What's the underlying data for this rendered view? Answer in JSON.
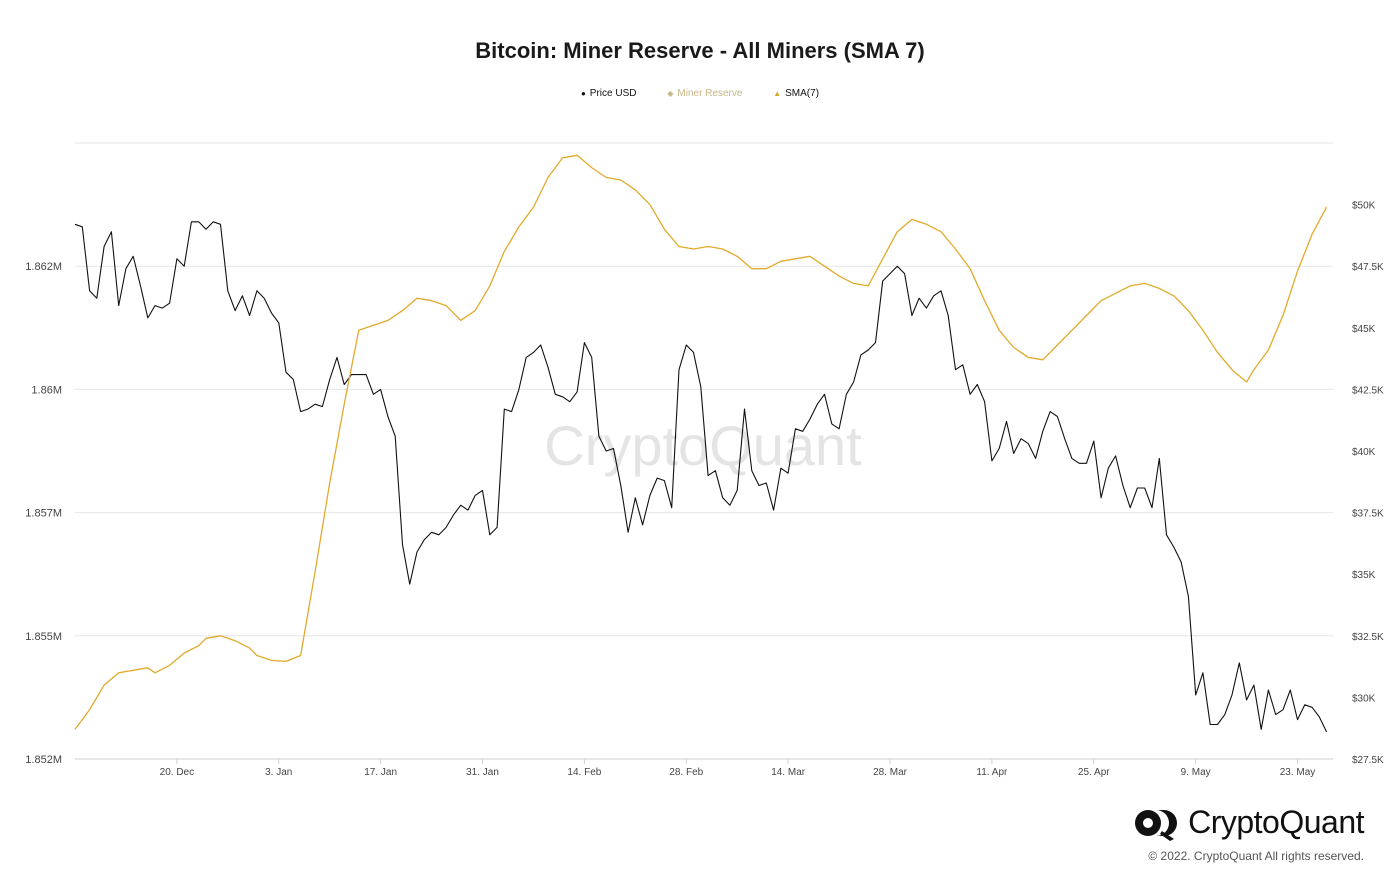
{
  "chart_data": {
    "type": "line",
    "title": "Bitcoin: Miner Reserve - All Miners (SMA 7)",
    "legend": [
      {
        "name": "Price USD",
        "color": "#111111",
        "marker": "●"
      },
      {
        "name": "Miner Reserve",
        "color": "#c9b68a",
        "marker": "◆"
      },
      {
        "name": "SMA(7)",
        "color": "#d8a32a",
        "marker": "▲"
      }
    ],
    "x_ticks": [
      "20. Dec",
      "3. Jan",
      "17. Jan",
      "31. Jan",
      "14. Feb",
      "28. Feb",
      "14. Mar",
      "28. Mar",
      "11. Apr",
      "25. Apr",
      "9. May",
      "23. May"
    ],
    "y_left_ticks": [
      "1.852M",
      "1.855M",
      "1.857M",
      "1.86M",
      "1.862M"
    ],
    "y_right_ticks": [
      "$27.5K",
      "$30K",
      "$32.5K",
      "$35K",
      "$37.5K",
      "$40K",
      "$42.5K",
      "$45K",
      "$47.5K",
      "$50K"
    ],
    "x_start": "2021-12-06",
    "grid": true,
    "legend_position": "top-center",
    "series": [
      {
        "name": "Price USD",
        "axis": "right",
        "color": "#111111",
        "ylim": [
          27500,
          52500
        ],
        "points": [
          [
            "2021-12-06",
            49200
          ],
          [
            "2021-12-07",
            49100
          ],
          [
            "2021-12-08",
            46500
          ],
          [
            "2021-12-09",
            46200
          ],
          [
            "2021-12-10",
            48300
          ],
          [
            "2021-12-11",
            48900
          ],
          [
            "2021-12-12",
            45900
          ],
          [
            "2021-12-13",
            47400
          ],
          [
            "2021-12-14",
            47900
          ],
          [
            "2021-12-15",
            46700
          ],
          [
            "2021-12-16",
            45400
          ],
          [
            "2021-12-17",
            45900
          ],
          [
            "2021-12-18",
            45800
          ],
          [
            "2021-12-19",
            46000
          ],
          [
            "2021-12-20",
            47800
          ],
          [
            "2021-12-21",
            47500
          ],
          [
            "2021-12-22",
            49300
          ],
          [
            "2021-12-23",
            49300
          ],
          [
            "2021-12-24",
            49000
          ],
          [
            "2021-12-25",
            49300
          ],
          [
            "2021-12-26",
            49200
          ],
          [
            "2021-12-27",
            46500
          ],
          [
            "2021-12-28",
            45700
          ],
          [
            "2021-12-29",
            46300
          ],
          [
            "2021-12-30",
            45500
          ],
          [
            "2021-12-31",
            46500
          ],
          [
            "2022-01-01",
            46200
          ],
          [
            "2022-01-02",
            45600
          ],
          [
            "2022-01-03",
            45200
          ],
          [
            "2022-01-04",
            43200
          ],
          [
            "2022-01-05",
            42900
          ],
          [
            "2022-01-06",
            41600
          ],
          [
            "2022-01-07",
            41700
          ],
          [
            "2022-01-08",
            41900
          ],
          [
            "2022-01-09",
            41800
          ],
          [
            "2022-01-10",
            42900
          ],
          [
            "2022-01-11",
            43800
          ],
          [
            "2022-01-12",
            42700
          ],
          [
            "2022-01-13",
            43100
          ],
          [
            "2022-01-14",
            43100
          ],
          [
            "2022-01-15",
            43100
          ],
          [
            "2022-01-16",
            42300
          ],
          [
            "2022-01-17",
            42500
          ],
          [
            "2022-01-18",
            41400
          ],
          [
            "2022-01-19",
            40600
          ],
          [
            "2022-01-20",
            36200
          ],
          [
            "2022-01-21",
            34600
          ],
          [
            "2022-01-22",
            35900
          ],
          [
            "2022-01-23",
            36400
          ],
          [
            "2022-01-24",
            36700
          ],
          [
            "2022-01-25",
            36600
          ],
          [
            "2022-01-26",
            36900
          ],
          [
            "2022-01-27",
            37400
          ],
          [
            "2022-01-28",
            37800
          ],
          [
            "2022-01-29",
            37600
          ],
          [
            "2022-01-30",
            38200
          ],
          [
            "2022-01-31",
            38400
          ],
          [
            "2022-02-01",
            36600
          ],
          [
            "2022-02-02",
            36900
          ],
          [
            "2022-02-03",
            41700
          ],
          [
            "2022-02-04",
            41600
          ],
          [
            "2022-02-05",
            42500
          ],
          [
            "2022-02-06",
            43800
          ],
          [
            "2022-02-07",
            44000
          ],
          [
            "2022-02-08",
            44300
          ],
          [
            "2022-02-09",
            43400
          ],
          [
            "2022-02-10",
            42300
          ],
          [
            "2022-02-11",
            42200
          ],
          [
            "2022-02-12",
            42000
          ],
          [
            "2022-02-13",
            42400
          ],
          [
            "2022-02-14",
            44400
          ],
          [
            "2022-02-15",
            43800
          ],
          [
            "2022-02-16",
            40600
          ],
          [
            "2022-02-17",
            40000
          ],
          [
            "2022-02-18",
            40100
          ],
          [
            "2022-02-19",
            38600
          ],
          [
            "2022-02-20",
            36700
          ],
          [
            "2022-02-21",
            38100
          ],
          [
            "2022-02-22",
            37000
          ],
          [
            "2022-02-23",
            38200
          ],
          [
            "2022-02-24",
            38900
          ],
          [
            "2022-02-25",
            38800
          ],
          [
            "2022-02-26",
            37700
          ],
          [
            "2022-02-27",
            43300
          ],
          [
            "2022-02-28",
            44300
          ],
          [
            "2022-03-01",
            44000
          ],
          [
            "2022-03-02",
            42600
          ],
          [
            "2022-03-03",
            39000
          ],
          [
            "2022-03-04",
            39200
          ],
          [
            "2022-03-05",
            38100
          ],
          [
            "2022-03-06",
            37800
          ],
          [
            "2022-03-07",
            38400
          ],
          [
            "2022-03-08",
            41700
          ],
          [
            "2022-03-09",
            39200
          ],
          [
            "2022-03-10",
            38600
          ],
          [
            "2022-03-11",
            38700
          ],
          [
            "2022-03-12",
            37600
          ],
          [
            "2022-03-13",
            39300
          ],
          [
            "2022-03-14",
            39100
          ],
          [
            "2022-03-15",
            40900
          ],
          [
            "2022-03-16",
            40800
          ],
          [
            "2022-03-17",
            41300
          ],
          [
            "2022-03-18",
            41900
          ],
          [
            "2022-03-19",
            42300
          ],
          [
            "2022-03-20",
            41100
          ],
          [
            "2022-03-21",
            40900
          ],
          [
            "2022-03-22",
            42300
          ],
          [
            "2022-03-23",
            42800
          ],
          [
            "2022-03-24",
            43900
          ],
          [
            "2022-03-25",
            44100
          ],
          [
            "2022-03-26",
            44400
          ],
          [
            "2022-03-27",
            46900
          ],
          [
            "2022-03-28",
            47200
          ],
          [
            "2022-03-29",
            47500
          ],
          [
            "2022-03-30",
            47200
          ],
          [
            "2022-03-31",
            45500
          ],
          [
            "2022-04-01",
            46200
          ],
          [
            "2022-04-02",
            45800
          ],
          [
            "2022-04-03",
            46300
          ],
          [
            "2022-04-04",
            46500
          ],
          [
            "2022-04-05",
            45500
          ],
          [
            "2022-04-06",
            43300
          ],
          [
            "2022-04-07",
            43500
          ],
          [
            "2022-04-08",
            42300
          ],
          [
            "2022-04-09",
            42700
          ],
          [
            "2022-04-10",
            42000
          ],
          [
            "2022-04-11",
            39600
          ],
          [
            "2022-04-12",
            40100
          ],
          [
            "2022-04-13",
            41200
          ],
          [
            "2022-04-14",
            39900
          ],
          [
            "2022-04-15",
            40500
          ],
          [
            "2022-04-16",
            40300
          ],
          [
            "2022-04-17",
            39700
          ],
          [
            "2022-04-18",
            40800
          ],
          [
            "2022-04-19",
            41600
          ],
          [
            "2022-04-20",
            41400
          ],
          [
            "2022-04-21",
            40500
          ],
          [
            "2022-04-22",
            39700
          ],
          [
            "2022-04-23",
            39500
          ],
          [
            "2022-04-24",
            39500
          ],
          [
            "2022-04-25",
            40400
          ],
          [
            "2022-04-26",
            38100
          ],
          [
            "2022-04-27",
            39300
          ],
          [
            "2022-04-28",
            39800
          ],
          [
            "2022-04-29",
            38600
          ],
          [
            "2022-04-30",
            37700
          ],
          [
            "2022-05-01",
            38500
          ],
          [
            "2022-05-02",
            38500
          ],
          [
            "2022-05-03",
            37700
          ],
          [
            "2022-05-04",
            39700
          ],
          [
            "2022-05-05",
            36600
          ],
          [
            "2022-05-06",
            36100
          ],
          [
            "2022-05-07",
            35500
          ],
          [
            "2022-05-08",
            34100
          ],
          [
            "2022-05-09",
            30100
          ],
          [
            "2022-05-10",
            31000
          ],
          [
            "2022-05-11",
            28900
          ],
          [
            "2022-05-12",
            28900
          ],
          [
            "2022-05-13",
            29300
          ],
          [
            "2022-05-14",
            30100
          ],
          [
            "2022-05-15",
            31400
          ],
          [
            "2022-05-16",
            29900
          ],
          [
            "2022-05-17",
            30500
          ],
          [
            "2022-05-18",
            28700
          ],
          [
            "2022-05-19",
            30300
          ],
          [
            "2022-05-20",
            29300
          ],
          [
            "2022-05-21",
            29500
          ],
          [
            "2022-05-22",
            30300
          ],
          [
            "2022-05-23",
            29100
          ],
          [
            "2022-05-24",
            29700
          ],
          [
            "2022-05-25",
            29600
          ],
          [
            "2022-05-26",
            29200
          ],
          [
            "2022-05-27",
            28600
          ]
        ]
      },
      {
        "name": "SMA(7)",
        "axis": "left",
        "color": "#e1aa2c",
        "ylim": [
          1852000,
          1864500
        ],
        "points": [
          [
            "2021-12-06",
            1852600
          ],
          [
            "2021-12-08",
            1853000
          ],
          [
            "2021-12-10",
            1853500
          ],
          [
            "2021-12-12",
            1853750
          ],
          [
            "2021-12-14",
            1853800
          ],
          [
            "2021-12-16",
            1853850
          ],
          [
            "2021-12-17",
            1853750
          ],
          [
            "2021-12-19",
            1853900
          ],
          [
            "2021-12-21",
            1854150
          ],
          [
            "2021-12-23",
            1854300
          ],
          [
            "2021-12-24",
            1854450
          ],
          [
            "2021-12-26",
            1854500
          ],
          [
            "2021-12-28",
            1854400
          ],
          [
            "2021-12-30",
            1854250
          ],
          [
            "2021-12-31",
            1854100
          ],
          [
            "2022-01-02",
            1854000
          ],
          [
            "2022-01-04",
            1853980
          ],
          [
            "2022-01-06",
            1854100
          ],
          [
            "2022-01-08",
            1855800
          ],
          [
            "2022-01-10",
            1857600
          ],
          [
            "2022-01-12",
            1859200
          ],
          [
            "2022-01-14",
            1860700
          ],
          [
            "2022-01-16",
            1860800
          ],
          [
            "2022-01-18",
            1860900
          ],
          [
            "2022-01-20",
            1861100
          ],
          [
            "2022-01-22",
            1861350
          ],
          [
            "2022-01-24",
            1861300
          ],
          [
            "2022-01-26",
            1861200
          ],
          [
            "2022-01-28",
            1860900
          ],
          [
            "2022-01-30",
            1861100
          ],
          [
            "2022-02-01",
            1861600
          ],
          [
            "2022-02-03",
            1862300
          ],
          [
            "2022-02-05",
            1862800
          ],
          [
            "2022-02-07",
            1863200
          ],
          [
            "2022-02-09",
            1863800
          ],
          [
            "2022-02-11",
            1864200
          ],
          [
            "2022-02-13",
            1864250
          ],
          [
            "2022-02-15",
            1864000
          ],
          [
            "2022-02-17",
            1863800
          ],
          [
            "2022-02-19",
            1863750
          ],
          [
            "2022-02-21",
            1863550
          ],
          [
            "2022-02-23",
            1863250
          ],
          [
            "2022-02-25",
            1862750
          ],
          [
            "2022-02-27",
            1862400
          ],
          [
            "2022-03-01",
            1862350
          ],
          [
            "2022-03-03",
            1862400
          ],
          [
            "2022-03-05",
            1862350
          ],
          [
            "2022-03-07",
            1862200
          ],
          [
            "2022-03-09",
            1861950
          ],
          [
            "2022-03-11",
            1861950
          ],
          [
            "2022-03-13",
            1862100
          ],
          [
            "2022-03-15",
            1862150
          ],
          [
            "2022-03-17",
            1862200
          ],
          [
            "2022-03-19",
            1862000
          ],
          [
            "2022-03-21",
            1861800
          ],
          [
            "2022-03-23",
            1861650
          ],
          [
            "2022-03-25",
            1861600
          ],
          [
            "2022-03-27",
            1862150
          ],
          [
            "2022-03-29",
            1862700
          ],
          [
            "2022-03-31",
            1862950
          ],
          [
            "2022-04-02",
            1862850
          ],
          [
            "2022-04-04",
            1862700
          ],
          [
            "2022-04-06",
            1862350
          ],
          [
            "2022-04-08",
            1861950
          ],
          [
            "2022-04-10",
            1861300
          ],
          [
            "2022-04-12",
            1860700
          ],
          [
            "2022-04-14",
            1860350
          ],
          [
            "2022-04-16",
            1860150
          ],
          [
            "2022-04-18",
            1860100
          ],
          [
            "2022-04-20",
            1860400
          ],
          [
            "2022-04-22",
            1860700
          ],
          [
            "2022-04-24",
            1861000
          ],
          [
            "2022-04-26",
            1861300
          ],
          [
            "2022-04-28",
            1861450
          ],
          [
            "2022-04-30",
            1861600
          ],
          [
            "2022-05-02",
            1861650
          ],
          [
            "2022-05-04",
            1861550
          ],
          [
            "2022-05-06",
            1861400
          ],
          [
            "2022-05-08",
            1861100
          ],
          [
            "2022-05-10",
            1860700
          ],
          [
            "2022-05-12",
            1860250
          ],
          [
            "2022-05-14",
            1859900
          ],
          [
            "2022-05-16",
            1859650
          ],
          [
            "2022-05-17",
            1859900
          ],
          [
            "2022-05-19",
            1860300
          ],
          [
            "2022-05-21",
            1861000
          ],
          [
            "2022-05-23",
            1861900
          ],
          [
            "2022-05-25",
            1862650
          ],
          [
            "2022-05-27",
            1863200
          ]
        ]
      }
    ]
  },
  "watermark": "CryptoQuant",
  "brand": {
    "name": "CryptoQuant",
    "copyright": "© 2022. CryptoQuant All rights reserved."
  }
}
